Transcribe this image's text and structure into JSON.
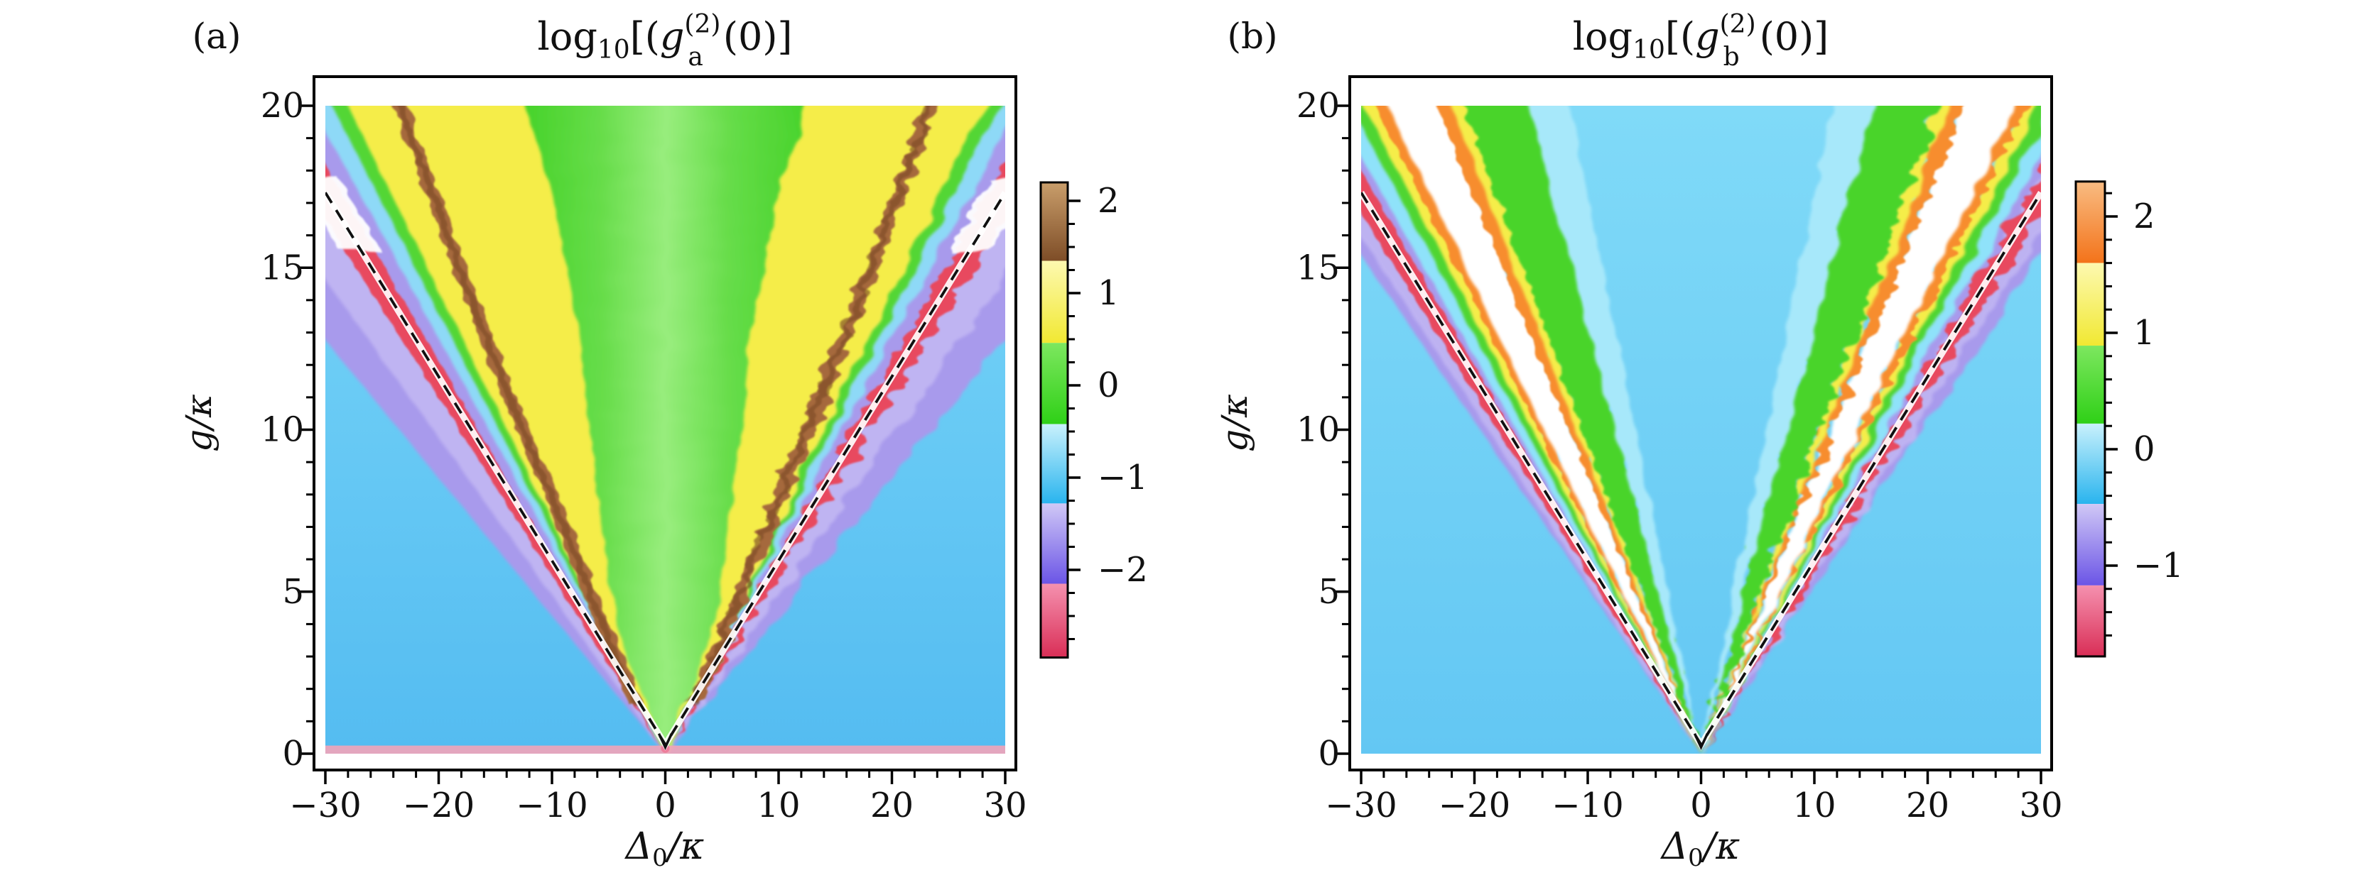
{
  "figure": {
    "panel_a": {
      "label": "(a)",
      "title": {
        "log": "log",
        "ten": "10",
        "open": "[(",
        "g": "g",
        "sup": "(2)",
        "sub": "a",
        "close": "(0)]"
      },
      "xlabel": {
        "delta": "Δ",
        "zero": "0",
        "per_kappa": "/κ"
      },
      "ylabel": "g/κ"
    },
    "panel_b": {
      "label": "(b)",
      "title": {
        "log": "log",
        "ten": "10",
        "open": "[(",
        "g": "g",
        "sup": "(2)",
        "sub": "b",
        "close": "(0)]"
      },
      "xlabel": {
        "delta": "Δ",
        "zero": "0",
        "per_kappa": "/κ"
      },
      "ylabel": "g/κ"
    }
  },
  "chart_data": [
    {
      "panel": "a",
      "type": "heatmap",
      "title": "log10[(g_a^(2)(0)]",
      "xlabel": "Δ0/κ",
      "ylabel": "g/κ",
      "xlim": [
        -30,
        30
      ],
      "ylim": [
        0,
        20
      ],
      "x_major_ticks": [
        -30,
        -20,
        -10,
        0,
        10,
        20,
        30
      ],
      "x_minor_step": 2,
      "y_major_ticks": [
        0,
        5,
        10,
        15,
        20
      ],
      "y_minor_step": 1,
      "background_top_color": "#7bd7f8",
      "background_bottom_color": "#54bcf1",
      "background_value": -0.8,
      "dashed_line": {
        "slope_delta_per_g": 1.732,
        "equation": "Δ0 = ±√3·g",
        "exit_g": 17.32,
        "apex_g": 0.28
      },
      "wedges": [
        {
          "name": "purple-outer",
          "outer_slope": 2.35,
          "inner_slope": 1.48,
          "color": "#a89aec",
          "rough": "roughSoft",
          "value": -1.8
        },
        {
          "name": "lavender-light",
          "outer_slope": 2.05,
          "inner_slope": 1.72,
          "color": "#c7bdf4",
          "rough": "roughSoft2",
          "opacity": 0.75,
          "value": -1.5
        },
        {
          "name": "red-ridge",
          "outer_slope": 1.82,
          "inner_slope": 1.65,
          "color": "#e8495f",
          "rough": "roughRidge",
          "value": -2.7
        },
        {
          "name": "cyan-strip",
          "outer_slope": 1.56,
          "inner_slope": 1.44,
          "color": "#8ed9f7",
          "rough": "roughSoft",
          "value": -0.7
        },
        {
          "name": "green-strip",
          "outer_slope": 1.47,
          "inner_slope": 1.37,
          "color": "#53d636",
          "rough": "roughSoft",
          "value": 0
        },
        {
          "name": "yellow-band",
          "outer_slope": 1.4,
          "inner_slope": 0.52,
          "color": "#f5ed49",
          "rough": "roughSoft",
          "value": 1
        },
        {
          "name": "brown-ridge",
          "curve": [
            [
              1.5,
              2.5
            ],
            [
              4,
              5.6
            ],
            [
              7,
              8.9
            ],
            [
              10,
              12.6
            ],
            [
              14,
              17.1
            ],
            [
              18,
              21.3
            ],
            [
              22,
              25.4
            ]
          ],
          "half_width": 0.62,
          "color": "#a5693e",
          "rough": "roughRidge",
          "value": 2,
          "ridge_equation": "two-photon resonance Δ0 ≈ ±(2/√3)·g"
        },
        {
          "name": "brown-ridge-core",
          "curve": [
            [
              1.5,
              2.5
            ],
            [
              4,
              5.6
            ],
            [
              7,
              8.9
            ],
            [
              10,
              12.6
            ],
            [
              14,
              17.1
            ],
            [
              18,
              21.3
            ],
            [
              22,
              25.4
            ]
          ],
          "half_width": 0.28,
          "color": "#7e4c28",
          "rough": "roughRidge2",
          "opacity": 0.65,
          "value": 2.2
        },
        {
          "name": "green-center-cone",
          "cone_curve": [
            [
              0,
              0
            ],
            [
              4,
              4.4
            ],
            [
              8,
              6.0
            ],
            [
              13,
              7.6
            ],
            [
              17,
              9.8
            ],
            [
              22,
              14.0
            ]
          ],
          "color": "#3fd023",
          "center_light_color": "#98ed7d",
          "rough": "roughSoft",
          "value": 0
        }
      ],
      "white_patches": [
        {
          "g_from": 15.5,
          "g_to": 17.7,
          "outer_slope": 1.85,
          "inner_slope": 1.62,
          "meaning": "value above colorbar range"
        }
      ],
      "bottom_strip": {
        "g_height": 0.25,
        "color": "#f3a3b8",
        "dot_color": "#ee7d9b",
        "value": -2.6
      },
      "colorbar": {
        "range": [
          -2.95,
          2.2
        ],
        "major_ticks": [
          2,
          1,
          0,
          -1,
          -2
        ],
        "minor_step": 0.25,
        "bands": [
          {
            "name": "brown",
            "from": 1.35,
            "to": 2.2,
            "top_color": "#c99e6b",
            "bottom_color": "#7e4d27"
          },
          {
            "name": "yellow",
            "from": 0.46,
            "to": 1.35,
            "top_color": "#fdf9b0",
            "bottom_color": "#f1e832"
          },
          {
            "name": "green",
            "from": -0.42,
            "to": 0.46,
            "top_color": "#7de75f",
            "bottom_color": "#2fd017"
          },
          {
            "name": "cyan",
            "from": -1.28,
            "to": -0.42,
            "top_color": "#c9f1fc",
            "bottom_color": "#29b4ee"
          },
          {
            "name": "purple",
            "from": -2.15,
            "to": -1.28,
            "top_color": "#d0c8f6",
            "bottom_color": "#6b55e6"
          },
          {
            "name": "pink",
            "from": -2.95,
            "to": -2.15,
            "top_color": "#f591af",
            "bottom_color": "#d92e56"
          }
        ]
      }
    },
    {
      "panel": "b",
      "type": "heatmap",
      "title": "log10[(g_b^(2)(0)]",
      "xlabel": "Δ0/κ",
      "ylabel": "g/κ",
      "xlim": [
        -30,
        30
      ],
      "ylim": [
        0,
        20
      ],
      "x_major_ticks": [
        -30,
        -20,
        -10,
        0,
        10,
        20,
        30
      ],
      "x_minor_step": 2,
      "y_major_ticks": [
        0,
        5,
        10,
        15,
        20
      ],
      "y_minor_step": 1,
      "background_top_color": "#80daf8",
      "background_bottom_color": "#63c7f3",
      "background_value": 0,
      "dashed_line": {
        "slope_delta_per_g": 1.732,
        "equation": "Δ0 = ±√3·g",
        "exit_g": 17.32,
        "apex_g": 0.28
      },
      "wedges": [
        {
          "name": "purple-outer",
          "outer_slope": 1.95,
          "inner_slope": 1.55,
          "color": "#a89aec",
          "rough": "roughSoft",
          "value": -1.0
        },
        {
          "name": "lavender-light",
          "outer_slope": 1.88,
          "inner_slope": 1.7,
          "color": "#c7bdf4",
          "rough": "roughSoft2",
          "opacity": 0.7,
          "value": -0.8
        },
        {
          "name": "red-ridge",
          "outer_slope": 1.8,
          "inner_slope": 1.67,
          "color": "#e8495f",
          "rough": "roughRidge",
          "value": -1.6
        },
        {
          "name": "cyan-strip",
          "outer_slope": 1.63,
          "inner_slope": 1.52,
          "color": "#8fe2fa",
          "rough": "roughSoft",
          "value": 0.2
        },
        {
          "name": "green-strip",
          "outer_slope": 1.55,
          "inner_slope": 1.46,
          "color": "#4fd531",
          "rough": "roughSoft",
          "value": 0.6
        },
        {
          "name": "yellow-strip",
          "outer_slope": 1.49,
          "inner_slope": 1.41,
          "color": "#f5ed49",
          "rough": "roughSoft",
          "value": 1.2
        },
        {
          "name": "orange-outer",
          "outer_slope": 1.44,
          "inner_slope": 1.35,
          "color": "#f78d2e",
          "rough": "roughRidge",
          "value": 2
        },
        {
          "name": "white-wedge",
          "outer_slope": 1.385,
          "inner_slope": 1.145,
          "color": "#ffffff",
          "rough": "roughSoft",
          "value": 2.5,
          "meaning": "value above colorbar range"
        },
        {
          "name": "orange-inner",
          "outer_slope": 1.17,
          "inner_slope": 1.07,
          "color": "#f78d2e",
          "rough": "roughRidge",
          "value": 2
        },
        {
          "name": "yellow-inner",
          "outer_slope": 1.1,
          "inner_slope": 1.015,
          "color": "#f5ed49",
          "rough": "roughSoft",
          "value": 1.2
        },
        {
          "name": "green-inner",
          "outer_slope": 1.05,
          "inner_slope": 0.72,
          "color": "#49d42c",
          "rough": "roughSaw",
          "value": 0.6
        },
        {
          "name": "cyan-blend",
          "outer_slope": 0.76,
          "inner_slope": 0.58,
          "color": "#a7e8fa",
          "rough": "roughSoft",
          "value": 0.2
        }
      ],
      "white_patches": [],
      "bottom_strip": null,
      "colorbar": {
        "range": [
          -1.78,
          2.3
        ],
        "major_ticks": [
          2,
          1,
          0,
          -1
        ],
        "minor_step": 0.2,
        "bands": [
          {
            "name": "orange",
            "from": 1.6,
            "to": 2.3,
            "top_color": "#f9bc82",
            "bottom_color": "#f3731a"
          },
          {
            "name": "yellow",
            "from": 0.89,
            "to": 1.6,
            "top_color": "#fdf9b0",
            "bottom_color": "#f1e832"
          },
          {
            "name": "green",
            "from": 0.22,
            "to": 0.89,
            "top_color": "#7de75f",
            "bottom_color": "#2fd017"
          },
          {
            "name": "cyan",
            "from": -0.47,
            "to": 0.22,
            "top_color": "#c9f1fc",
            "bottom_color": "#29b4ee"
          },
          {
            "name": "purple",
            "from": -1.17,
            "to": -0.47,
            "top_color": "#d0c8f6",
            "bottom_color": "#6b55e6"
          },
          {
            "name": "pink",
            "from": -1.78,
            "to": -1.17,
            "top_color": "#f591af",
            "bottom_color": "#d92e56"
          }
        ]
      }
    }
  ]
}
